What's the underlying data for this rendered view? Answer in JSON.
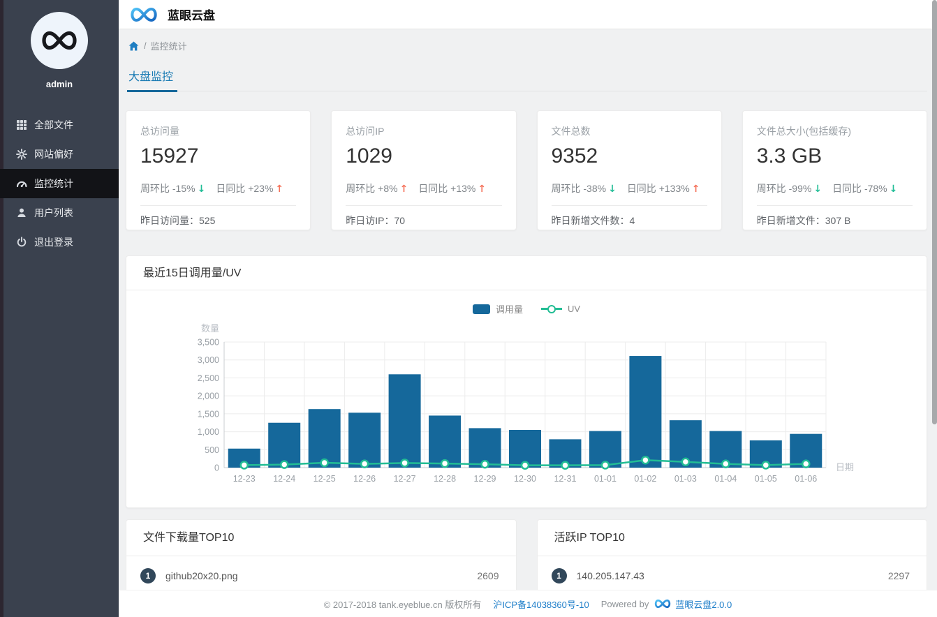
{
  "app": {
    "title": "蓝眼云盘"
  },
  "sidebar": {
    "username": "admin",
    "items": [
      {
        "label": "全部文件",
        "icon": "grid-icon",
        "active": false
      },
      {
        "label": "网站偏好",
        "icon": "gear-icon",
        "active": false
      },
      {
        "label": "监控统计",
        "icon": "dashboard-icon",
        "active": true
      },
      {
        "label": "用户列表",
        "icon": "user-icon",
        "active": false
      },
      {
        "label": "退出登录",
        "icon": "power-icon",
        "active": false
      }
    ]
  },
  "breadcrumb": {
    "home_icon": "home-icon",
    "separator": "/",
    "page": "监控统计"
  },
  "tabs": {
    "active": "大盘监控"
  },
  "stat_cards": [
    {
      "label": "总访问量",
      "value": "15927",
      "trends": [
        {
          "text": "周环比 -15%",
          "arrow": "↓",
          "dir": "down"
        },
        {
          "text": "日同比 +23%",
          "arrow": "↑",
          "dir": "up"
        }
      ],
      "bottom_label": "昨日访问量：",
      "bottom_value": "525"
    },
    {
      "label": "总访问IP",
      "value": "1029",
      "trends": [
        {
          "text": "周环比 +8%",
          "arrow": "↑",
          "dir": "up"
        },
        {
          "text": "日同比 +13%",
          "arrow": "↑",
          "dir": "up"
        }
      ],
      "bottom_label": "昨日访IP：",
      "bottom_value": "70"
    },
    {
      "label": "文件总数",
      "value": "9352",
      "trends": [
        {
          "text": "周环比 -38%",
          "arrow": "↓",
          "dir": "down"
        },
        {
          "text": "日同比 +133%",
          "arrow": "↑",
          "dir": "up"
        }
      ],
      "bottom_label": "昨日新增文件数：",
      "bottom_value": "4"
    },
    {
      "label": "文件总大小(包括缓存)",
      "value": "3.3 GB",
      "trends": [
        {
          "text": "周环比 -99%",
          "arrow": "↓",
          "dir": "down"
        },
        {
          "text": "日同比 -78%",
          "arrow": "↓",
          "dir": "down"
        }
      ],
      "bottom_label": "昨日新增文件：",
      "bottom_value": "307 B"
    }
  ],
  "chart_panel": {
    "title": "最近15日调用量/UV"
  },
  "chart_data": {
    "type": "bar",
    "title": "最近15日调用量/UV",
    "categories": [
      "12-23",
      "12-24",
      "12-25",
      "12-26",
      "12-27",
      "12-28",
      "12-29",
      "12-30",
      "12-31",
      "01-01",
      "01-02",
      "01-03",
      "01-04",
      "01-05",
      "01-06"
    ],
    "series": [
      {
        "name": "调用量",
        "type": "bar",
        "color": "#15689b",
        "values": [
          530,
          1250,
          1630,
          1530,
          2600,
          1450,
          1100,
          1050,
          790,
          1020,
          3110,
          1320,
          1020,
          760,
          940
        ]
      },
      {
        "name": "UV",
        "type": "line",
        "color": "#22bd94",
        "values": [
          70,
          85,
          135,
          105,
          130,
          115,
          95,
          65,
          65,
          70,
          210,
          160,
          105,
          70,
          105
        ]
      }
    ],
    "xlabel": "日期",
    "ylabel": "数量",
    "ylim": [
      0,
      3500
    ],
    "ytick_step": 500,
    "ytick_labels": [
      "0",
      "500",
      "1,000",
      "1,500",
      "2,000",
      "2,500",
      "3,000",
      "3,500"
    ],
    "legend_position": "top-center",
    "grid": true
  },
  "top_lists": [
    {
      "title": "文件下载量TOP10",
      "rows": [
        {
          "rank": "1",
          "name": "github20x20.png",
          "value": "2609"
        }
      ]
    },
    {
      "title": "活跃IP TOP10",
      "rows": [
        {
          "rank": "1",
          "name": "140.205.147.43",
          "value": "2297"
        }
      ]
    }
  ],
  "footer": {
    "copyright": "© 2017-2018 tank.eyeblue.cn 版权所有",
    "icp": "沪ICP备14038360号-10",
    "powered_by": "Powered by",
    "brand": "蓝眼云盘2.0.0"
  },
  "colors": {
    "primary_blue": "#15689b",
    "tab_blue": "#1b7cb4",
    "link_blue": "#1e7ec9",
    "bar_color": "#15689b",
    "line_color": "#22bd94",
    "trend_up": "#f5735c",
    "trend_down": "#21bd96",
    "sidebar_bg": "#3a414e",
    "active_item_bg": "#121317",
    "rank_badge": "#31475a",
    "content_bg": "#f0f1f2"
  }
}
